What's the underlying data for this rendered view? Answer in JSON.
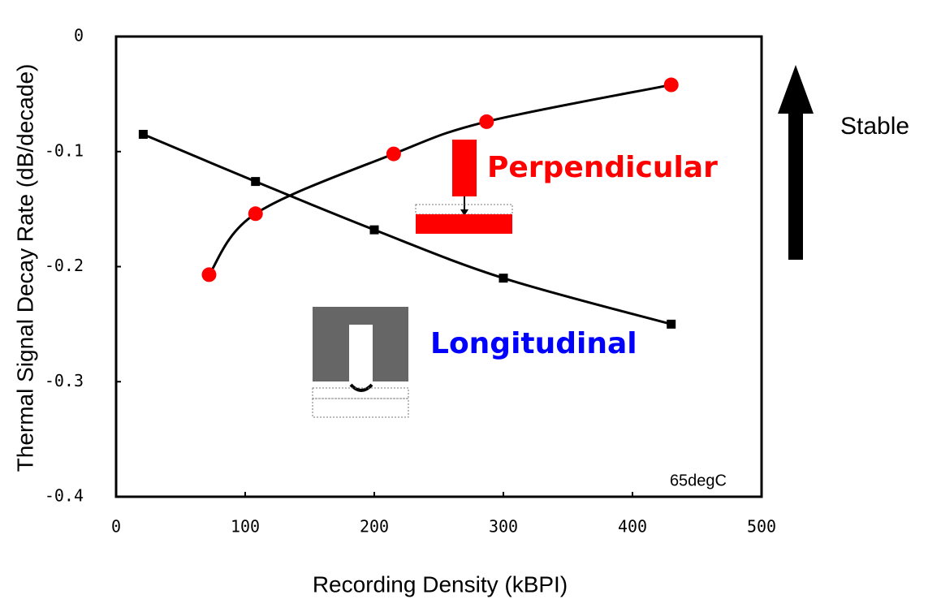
{
  "chart_data": {
    "type": "line",
    "x_label": "Recording Density (kBPI)",
    "y_label": "Thermal Signal Decay Rate (dB/decade)",
    "annotation": "65degC",
    "arrow_label": "Stable",
    "xlim": [
      0,
      500
    ],
    "xticks": [
      0,
      100,
      200,
      300,
      400,
      500
    ],
    "ylim": [
      -0.4,
      0
    ],
    "yticks": [
      -0.4,
      -0.3,
      -0.2,
      -0.1,
      0
    ],
    "series": [
      {
        "name": "Perpendicular",
        "color": "#ff0000",
        "marker": "circle",
        "label_color": "#ff0000",
        "x": [
          72,
          108,
          215,
          287,
          430
        ],
        "values": [
          -0.207,
          -0.154,
          -0.102,
          -0.074,
          -0.042
        ]
      },
      {
        "name": "Longitudinal",
        "color": "#000000",
        "marker": "square",
        "label_color": "#0000ff",
        "x": [
          21,
          108,
          200,
          300,
          430
        ],
        "values": [
          -0.085,
          -0.126,
          -0.168,
          -0.21,
          -0.25
        ]
      }
    ]
  }
}
